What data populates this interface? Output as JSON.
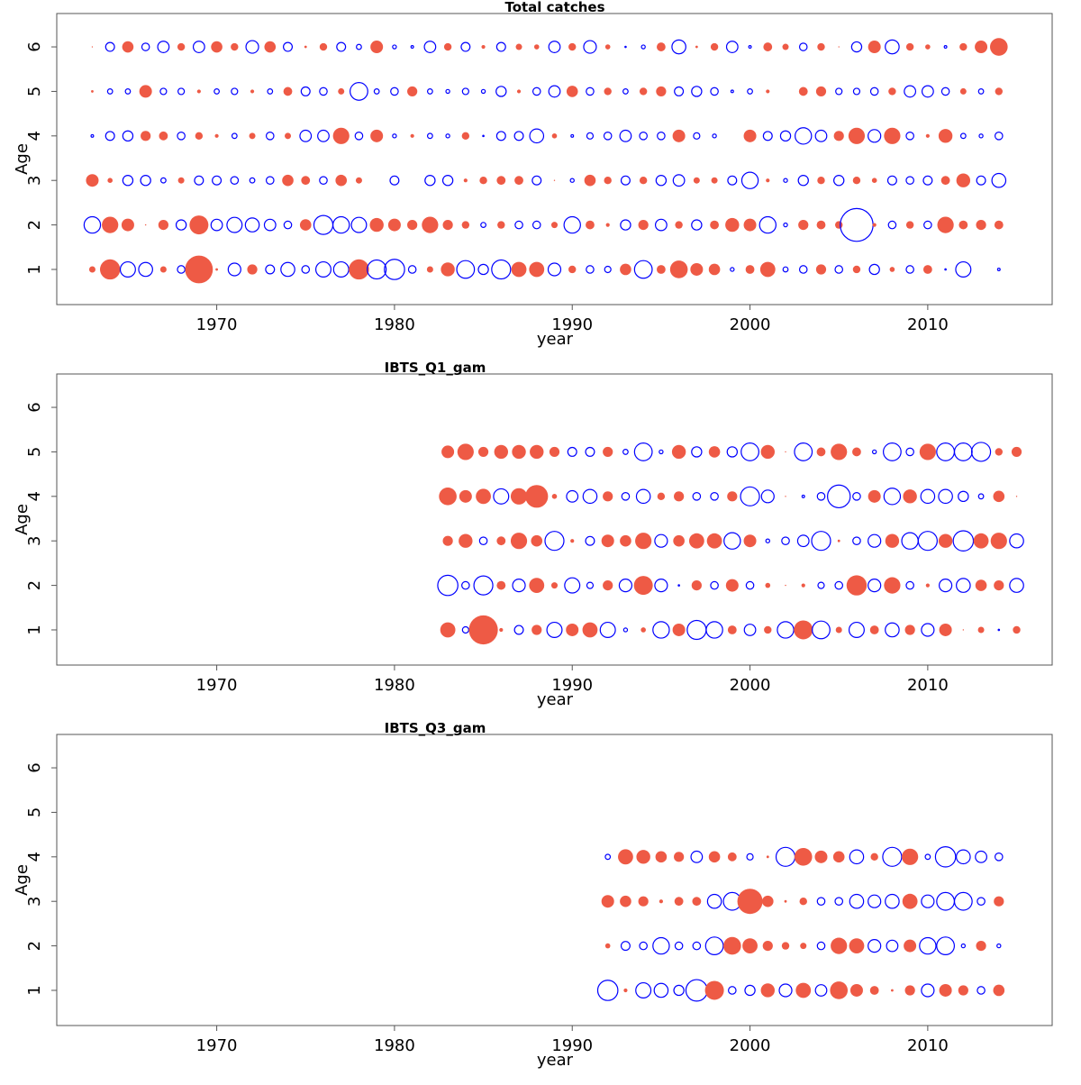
{
  "chart_data": [
    {
      "type": "bubble",
      "title": "Total catches",
      "xlabel": "year",
      "ylabel": "Age",
      "xlim": [
        1961,
        2017
      ],
      "xticks": [
        1970,
        1980,
        1990,
        2000,
        2010
      ],
      "ylim": [
        0.21,
        6.75
      ],
      "yticks": [
        1,
        2,
        3,
        4,
        5,
        6
      ],
      "colors": {
        "positive": "#ee5a45",
        "negative": "#0000ff"
      },
      "x": [
        1963,
        1964,
        1965,
        1966,
        1967,
        1968,
        1969,
        1970,
        1971,
        1972,
        1973,
        1974,
        1975,
        1976,
        1977,
        1978,
        1979,
        1980,
        1981,
        1982,
        1983,
        1984,
        1985,
        1986,
        1987,
        1988,
        1989,
        1990,
        1991,
        1992,
        1993,
        1994,
        1995,
        1996,
        1997,
        1998,
        1999,
        2000,
        2001,
        2002,
        2003,
        2004,
        2005,
        2006,
        2007,
        2008,
        2009,
        2010,
        2011,
        2012,
        2013,
        2014
      ],
      "ages": [
        1,
        2,
        3,
        4,
        5,
        6
      ],
      "values": [
        [
          0.5,
          1.6,
          -1.2,
          -1.1,
          0.5,
          -0.6,
          2.2,
          0.2,
          -1.0,
          0.8,
          -0.7,
          -1.1,
          -0.6,
          -1.2,
          -1.2,
          1.6,
          -1.5,
          -1.6,
          -0.6,
          0.5,
          1.1,
          -1.4,
          -0.8,
          -1.5,
          1.2,
          1.2,
          -1.0,
          0.6,
          -0.6,
          -0.5,
          0.9,
          -1.4,
          0.7,
          1.4,
          1.0,
          0.9,
          -0.3,
          0.7,
          1.2,
          -0.4,
          -0.6,
          0.8,
          -0.6,
          0.6,
          -0.8,
          0.4,
          -0.6,
          0.7,
          -0.1,
          -1.2,
          0.0,
          -0.2
        ],
        [
          -1.3,
          1.3,
          1.0,
          0.1,
          0.8,
          -0.8,
          1.5,
          -0.9,
          -1.2,
          -1.1,
          -0.9,
          -0.6,
          0.9,
          -1.5,
          -1.3,
          -1.2,
          1.1,
          1.0,
          0.8,
          1.3,
          0.8,
          0.6,
          -0.4,
          0.6,
          -0.6,
          -0.6,
          0.5,
          -1.3,
          0.7,
          0.3,
          -0.8,
          0.8,
          -0.9,
          0.6,
          -0.8,
          0.7,
          1.1,
          1.0,
          -1.3,
          -0.3,
          0.8,
          0.7,
          0.6,
          -2.6,
          0.3,
          -0.6,
          0.6,
          -0.6,
          1.3,
          0.7,
          0.8,
          0.7
        ],
        [
          1.0,
          0.4,
          -0.8,
          -0.8,
          -0.4,
          0.5,
          -0.7,
          -0.7,
          -0.6,
          -0.4,
          -0.6,
          0.9,
          0.7,
          -0.6,
          0.9,
          0.5,
          0.0,
          -0.7,
          0.0,
          -0.8,
          -0.8,
          0.3,
          0.6,
          0.7,
          0.7,
          -0.7,
          0.1,
          -0.3,
          0.9,
          0.6,
          -0.7,
          0.6,
          -0.8,
          -0.9,
          0.5,
          0.5,
          -0.7,
          -1.3,
          0.3,
          -0.3,
          -0.8,
          0.6,
          -0.8,
          0.6,
          0.4,
          -0.7,
          -0.6,
          -0.7,
          0.7,
          1.1,
          -0.7,
          -1.1
        ],
        [
          -0.2,
          -0.7,
          -0.8,
          0.8,
          0.7,
          -0.6,
          0.6,
          0.3,
          -0.4,
          0.5,
          -0.6,
          0.5,
          -0.9,
          -0.9,
          1.3,
          -0.6,
          1.0,
          -0.3,
          0.3,
          -0.4,
          -0.3,
          0.6,
          -0.1,
          -0.7,
          -0.7,
          -1.1,
          0.4,
          -0.2,
          -0.5,
          -0.6,
          -0.9,
          -0.6,
          -0.6,
          1.0,
          -0.5,
          -0.3,
          0.0,
          1.0,
          -0.7,
          -0.8,
          -1.3,
          -0.9,
          0.8,
          1.3,
          -1.0,
          1.3,
          -0.6,
          0.3,
          1.1,
          -0.4,
          -0.3,
          -0.6
        ],
        [
          0.2,
          -0.4,
          -0.4,
          1.0,
          -0.5,
          -0.5,
          0.3,
          -0.4,
          -0.5,
          0.3,
          -0.4,
          0.7,
          -0.7,
          -0.6,
          0.5,
          -1.4,
          -0.4,
          -0.6,
          0.8,
          -0.4,
          -0.3,
          -0.5,
          -0.3,
          -0.8,
          0.3,
          -0.6,
          -0.9,
          0.9,
          -0.6,
          0.6,
          -0.4,
          0.6,
          0.8,
          -0.7,
          -0.8,
          -0.6,
          -0.2,
          -0.4,
          0.3,
          0.0,
          0.7,
          0.8,
          -0.5,
          -0.5,
          -0.6,
          0.6,
          -0.9,
          -0.9,
          -0.6,
          0.5,
          -0.4,
          0.6
        ],
        [
          0.1,
          -0.7,
          0.9,
          -0.6,
          -0.9,
          0.6,
          -0.9,
          0.9,
          0.6,
          -1.0,
          0.9,
          -0.7,
          0.2,
          0.6,
          -0.7,
          -0.4,
          1.0,
          -0.3,
          -0.2,
          -0.9,
          0.6,
          -0.7,
          0.3,
          -0.7,
          0.5,
          0.4,
          -0.9,
          0.6,
          -1.0,
          0.4,
          -0.1,
          -0.3,
          0.7,
          -1.1,
          0.2,
          0.6,
          -0.9,
          -0.2,
          0.7,
          0.5,
          -0.6,
          0.6,
          0.1,
          -0.8,
          1.0,
          -1.1,
          0.6,
          0.4,
          -0.2,
          0.6,
          1.0,
          1.4
        ]
      ]
    },
    {
      "type": "bubble",
      "title": "IBTS_Q1_gam",
      "xlabel": "year",
      "ylabel": "Age",
      "xlim": [
        1961,
        2017
      ],
      "xticks": [
        1970,
        1980,
        1990,
        2000,
        2010
      ],
      "ylim": [
        0.21,
        6.75
      ],
      "yticks": [
        1,
        2,
        3,
        4,
        5,
        6
      ],
      "colors": {
        "positive": "#ee5a45",
        "negative": "#0000ff"
      },
      "x": [
        1983,
        1984,
        1985,
        1986,
        1987,
        1988,
        1989,
        1990,
        1991,
        1992,
        1993,
        1994,
        1995,
        1996,
        1997,
        1998,
        1999,
        2000,
        2001,
        2002,
        2003,
        2004,
        2005,
        2006,
        2007,
        2008,
        2009,
        2010,
        2011,
        2012,
        2013,
        2014,
        2015
      ],
      "ages": [
        1,
        2,
        3,
        4,
        5
      ],
      "values": [
        [
          1.2,
          -0.5,
          2.3,
          0.3,
          -0.7,
          0.8,
          -1.2,
          1.0,
          1.2,
          -1.2,
          -0.3,
          0.4,
          -1.3,
          1.0,
          -1.5,
          -1.3,
          0.7,
          -0.9,
          0.6,
          -1.3,
          1.5,
          -1.4,
          0.5,
          -1.2,
          0.7,
          -1.1,
          0.8,
          -1.0,
          1.0,
          0.1,
          0.5,
          -0.1,
          0.6
        ],
        [
          -1.6,
          -0.6,
          -1.5,
          0.7,
          -1.0,
          1.2,
          0.5,
          -1.2,
          -0.5,
          0.8,
          -1.0,
          1.5,
          -1.0,
          -0.1,
          0.8,
          -0.6,
          1.0,
          -0.6,
          0.4,
          0.1,
          0.3,
          -0.5,
          -0.6,
          1.6,
          -1.0,
          1.3,
          -0.6,
          0.3,
          -1.0,
          -1.1,
          0.9,
          0.8,
          -1.1
        ],
        [
          0.8,
          1.1,
          -0.6,
          0.7,
          1.3,
          0.9,
          -1.5,
          0.3,
          -0.7,
          1.0,
          0.9,
          1.3,
          -1.0,
          0.9,
          1.2,
          1.2,
          -1.3,
          1.0,
          -0.3,
          -0.6,
          -0.9,
          -1.5,
          0.2,
          -0.6,
          -1.0,
          1.1,
          -1.3,
          -1.5,
          1.1,
          -1.6,
          1.2,
          1.3,
          -1.1
        ],
        [
          1.4,
          1.0,
          1.2,
          -1.2,
          1.3,
          1.8,
          0.4,
          -0.9,
          -1.1,
          0.8,
          -0.6,
          -1.1,
          0.6,
          0.8,
          -0.6,
          -0.6,
          0.8,
          -1.5,
          -1.0,
          0.1,
          -0.2,
          -0.6,
          -1.8,
          -0.6,
          1.0,
          -1.3,
          1.1,
          -1.1,
          -1.1,
          -0.8,
          -0.4,
          0.9,
          0.1
        ],
        [
          1.0,
          1.3,
          0.8,
          1.1,
          1.1,
          1.1,
          0.8,
          -0.7,
          -0.7,
          0.8,
          -0.4,
          -1.4,
          -0.3,
          1.1,
          -0.8,
          0.9,
          -0.8,
          -1.4,
          1.1,
          0.1,
          -1.4,
          0.7,
          1.3,
          0.7,
          -0.3,
          -1.4,
          -0.6,
          1.3,
          -1.4,
          -1.4,
          -1.5,
          0.6,
          0.8
        ]
      ]
    },
    {
      "type": "bubble",
      "title": "IBTS_Q3_gam",
      "xlabel": "year",
      "ylabel": "Age",
      "xlim": [
        1961,
        2017
      ],
      "xticks": [
        1970,
        1980,
        1990,
        2000,
        2010
      ],
      "ylim": [
        0.21,
        6.75
      ],
      "yticks": [
        1,
        2,
        3,
        4,
        5,
        6
      ],
      "colors": {
        "positive": "#ee5a45",
        "negative": "#0000ff"
      },
      "x": [
        1992,
        1993,
        1994,
        1995,
        1996,
        1997,
        1998,
        1999,
        2000,
        2001,
        2002,
        2003,
        2004,
        2005,
        2006,
        2007,
        2008,
        2009,
        2010,
        2011,
        2012,
        2013,
        2014
      ],
      "ages": [
        1,
        2,
        3,
        4
      ],
      "values": [
        [
          -1.6,
          0.3,
          -1.2,
          -1.1,
          -0.8,
          -1.7,
          1.5,
          -0.6,
          -0.8,
          1.1,
          -1.0,
          1.2,
          -0.9,
          1.4,
          1.0,
          0.7,
          0.2,
          0.8,
          -1.0,
          1.0,
          0.8,
          -0.6,
          0.9
        ],
        [
          0.4,
          -0.7,
          -0.6,
          -1.3,
          -0.6,
          -0.6,
          -1.4,
          1.4,
          1.2,
          0.8,
          0.6,
          0.5,
          -0.6,
          1.3,
          1.2,
          -1.0,
          -0.9,
          1.0,
          -1.3,
          -1.4,
          -0.3,
          0.8,
          -0.3
        ],
        [
          1.0,
          0.9,
          0.8,
          0.3,
          0.7,
          0.7,
          -1.1,
          -1.4,
          2.0,
          0.9,
          0.2,
          0.6,
          -0.6,
          -0.6,
          -1.1,
          -1.0,
          -1.1,
          1.2,
          -1.0,
          -1.4,
          -1.4,
          -0.6,
          0.8
        ],
        [
          -0.4,
          1.2,
          1.1,
          0.9,
          0.8,
          -0.9,
          0.9,
          0.7,
          -0.5,
          0.2,
          -1.5,
          1.4,
          1.0,
          0.9,
          -1.1,
          0.6,
          -1.5,
          1.3,
          -0.4,
          -1.6,
          -1.1,
          -0.9,
          -0.6
        ]
      ]
    }
  ]
}
